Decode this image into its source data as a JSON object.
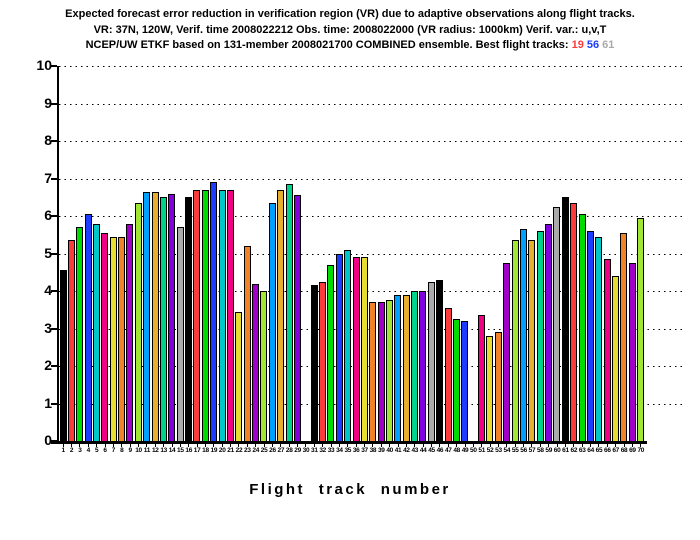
{
  "title": {
    "line1": "Expected forecast error reduction in verification region (VR) due to adaptive observations along flight tracks.",
    "line2": "VR: 37N, 120W, Verif. time 2008022212 Obs. time: 2008022000 (VR radius: 1000km)  Verif. var.: u,v,T",
    "line3_prefix": "NCEP/UW ETKF based on 131-member 2008021700 COMBINED ensemble.  Best flight tracks:",
    "best_tracks": [
      {
        "track": "19",
        "color": "#fa3c3c"
      },
      {
        "track": "56",
        "color": "#1e3cff"
      },
      {
        "track": "61",
        "color": "#aaaaaa"
      }
    ]
  },
  "chart_data": {
    "type": "bar",
    "title": "Expected forecast error reduction in verification region (VR) due to adaptive observations along flight tracks.",
    "subtitle1": "VR: 37N, 120W, Verif. time 2008022212 Obs. time: 2008022000 (VR radius: 1000km)  Verif. var.: u,v,T",
    "subtitle2": "NCEP/UW ETKF based on 131-member 2008021700 COMBINED ensemble.  Best flight tracks: 19 56 61",
    "xlabel": "Flight track number",
    "ylabel": "",
    "ylim": [
      0,
      10
    ],
    "yticks": [
      0,
      1,
      2,
      3,
      4,
      5,
      6,
      7,
      8,
      9,
      10
    ],
    "grid": "horizontal dotted black lines at each integer 1-10",
    "legend_position": "none",
    "categories": [
      1,
      2,
      3,
      4,
      5,
      6,
      7,
      8,
      9,
      10,
      11,
      12,
      13,
      14,
      15,
      16,
      17,
      18,
      19,
      20,
      21,
      22,
      23,
      24,
      25,
      26,
      27,
      28,
      29,
      30,
      31,
      32,
      33,
      34,
      35,
      36,
      37,
      38,
      39,
      40,
      41,
      42,
      43,
      44,
      45,
      46,
      47,
      48,
      49,
      50,
      51,
      52,
      53,
      54,
      55,
      56,
      57,
      58,
      59,
      60,
      61,
      62,
      63,
      64,
      65,
      66,
      67,
      68,
      69,
      70
    ],
    "values": [
      4.55,
      5.35,
      5.7,
      6.05,
      5.8,
      5.55,
      5.45,
      5.45,
      5.8,
      6.35,
      6.65,
      6.65,
      6.5,
      6.6,
      5.7,
      6.5,
      6.7,
      6.7,
      6.9,
      6.7,
      6.7,
      3.45,
      5.2,
      4.2,
      4.0,
      6.35,
      6.7,
      6.85,
      6.55,
      0,
      4.15,
      4.25,
      4.7,
      5.0,
      5.1,
      4.9,
      4.9,
      3.7,
      3.7,
      3.75,
      3.9,
      3.9,
      4.0,
      4.0,
      4.25,
      4.3,
      3.55,
      3.25,
      3.2,
      0,
      3.35,
      2.8,
      2.9,
      4.75,
      5.35,
      5.65,
      5.35,
      5.6,
      5.8,
      6.25,
      6.5,
      6.35,
      6.05,
      5.6,
      5.45,
      4.85,
      4.4,
      5.55,
      4.75,
      5.95
    ],
    "missing_tracks": [
      30,
      50
    ],
    "bar_colors_cycle": [
      "#000000",
      "#fa3c3c",
      "#00dc00",
      "#1e3cff",
      "#00c8c8",
      "#f00082",
      "#e6dc32",
      "#f08228",
      "#a000c8",
      "#a0e632",
      "#00a0ff",
      "#e6af2d",
      "#00d28c",
      "#8200dc",
      "#aaaaaa"
    ],
    "color_rule": "bar for track n uses bar_colors_cycle[(n-1) mod 15]",
    "best_tracks": [
      "19",
      "56",
      "61"
    ]
  }
}
